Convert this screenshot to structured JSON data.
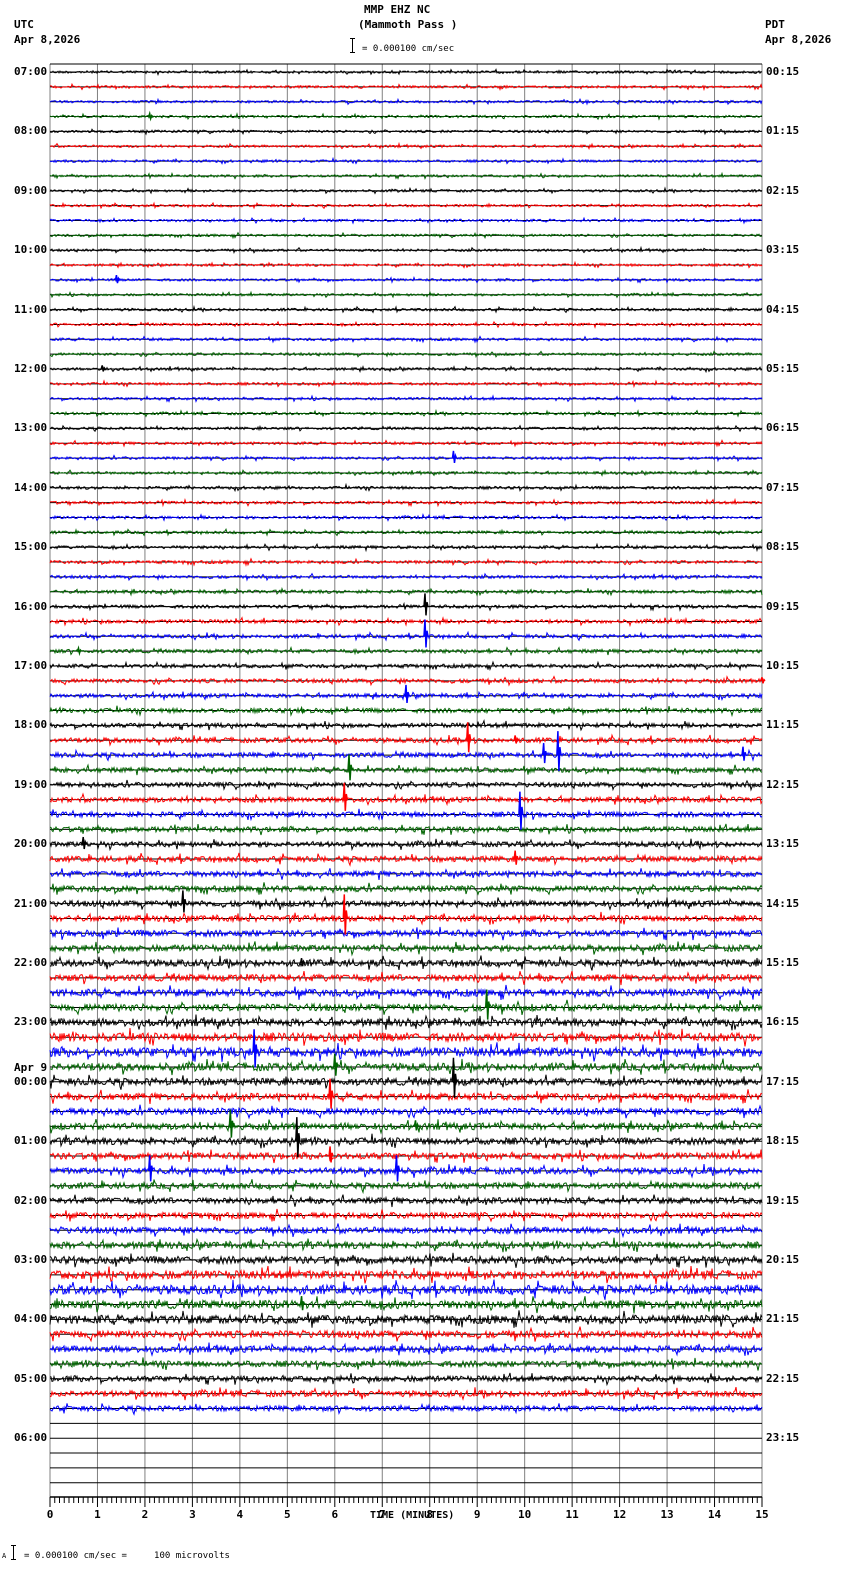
{
  "header": {
    "station": "MMP EHZ NC",
    "location": "(Mammoth Pass )",
    "left_tz": "UTC",
    "left_date": "Apr 8,2026",
    "right_tz": "PDT",
    "right_date": "Apr 8,2026",
    "scale_text": "= 0.000100 cm/sec"
  },
  "footer": {
    "scale_prefix": "A",
    "scale_text": "= 0.000100 cm/sec =     100 microvolts"
  },
  "colors": {
    "trace_cycle": [
      "#000000",
      "#ff0000",
      "#0000ff",
      "#006400"
    ],
    "grid": "#808080",
    "axis": "#000000"
  },
  "chart_data": {
    "type": "line",
    "title": "MMP EHZ NC (Mammoth Pass )",
    "subtitle": "= 0.000100 cm/sec",
    "xlabel": "TIME (MINUTES)",
    "ylabel": "",
    "x_ticks": [
      "0",
      "1",
      "2",
      "3",
      "4",
      "5",
      "6",
      "7",
      "8",
      "9",
      "10",
      "11",
      "12",
      "13",
      "14",
      "15"
    ],
    "xlim": [
      0,
      15
    ],
    "grid": true,
    "traces_per_hour": 4,
    "trace_minutes": 15,
    "left_axis_labels": [
      {
        "row": 0,
        "text": "07:00"
      },
      {
        "row": 4,
        "text": "08:00"
      },
      {
        "row": 8,
        "text": "09:00"
      },
      {
        "row": 12,
        "text": "10:00"
      },
      {
        "row": 16,
        "text": "11:00"
      },
      {
        "row": 20,
        "text": "12:00"
      },
      {
        "row": 24,
        "text": "13:00"
      },
      {
        "row": 28,
        "text": "14:00"
      },
      {
        "row": 32,
        "text": "15:00"
      },
      {
        "row": 36,
        "text": "16:00"
      },
      {
        "row": 40,
        "text": "17:00"
      },
      {
        "row": 44,
        "text": "18:00"
      },
      {
        "row": 48,
        "text": "19:00"
      },
      {
        "row": 52,
        "text": "20:00"
      },
      {
        "row": 56,
        "text": "21:00"
      },
      {
        "row": 60,
        "text": "22:00"
      },
      {
        "row": 64,
        "text": "23:00"
      },
      {
        "row": 68,
        "text": "00:00",
        "date": "Apr 9"
      },
      {
        "row": 72,
        "text": "01:00"
      },
      {
        "row": 76,
        "text": "02:00"
      },
      {
        "row": 80,
        "text": "03:00"
      },
      {
        "row": 84,
        "text": "04:00"
      },
      {
        "row": 88,
        "text": "05:00"
      },
      {
        "row": 92,
        "text": "06:00"
      }
    ],
    "right_axis_labels": [
      {
        "row": 0,
        "text": "00:15"
      },
      {
        "row": 4,
        "text": "01:15"
      },
      {
        "row": 8,
        "text": "02:15"
      },
      {
        "row": 12,
        "text": "03:15"
      },
      {
        "row": 16,
        "text": "04:15"
      },
      {
        "row": 20,
        "text": "05:15"
      },
      {
        "row": 24,
        "text": "06:15"
      },
      {
        "row": 28,
        "text": "07:15"
      },
      {
        "row": 32,
        "text": "08:15"
      },
      {
        "row": 36,
        "text": "09:15"
      },
      {
        "row": 40,
        "text": "10:15"
      },
      {
        "row": 44,
        "text": "11:15"
      },
      {
        "row": 48,
        "text": "12:15"
      },
      {
        "row": 52,
        "text": "13:15"
      },
      {
        "row": 56,
        "text": "14:15"
      },
      {
        "row": 60,
        "text": "15:15"
      },
      {
        "row": 64,
        "text": "16:15"
      },
      {
        "row": 68,
        "text": "17:15"
      },
      {
        "row": 72,
        "text": "18:15"
      },
      {
        "row": 76,
        "text": "19:15"
      },
      {
        "row": 80,
        "text": "20:15"
      },
      {
        "row": 84,
        "text": "21:15"
      },
      {
        "row": 88,
        "text": "22:15"
      },
      {
        "row": 92,
        "text": "23:15"
      }
    ],
    "total_rows": 96,
    "rows_with_data": 91,
    "noise_amplitude_by_row": [
      1.2,
      1.2,
      1.2,
      1.2,
      1.2,
      1.2,
      1.2,
      1.2,
      1.2,
      1.2,
      1.2,
      1.2,
      1.2,
      1.2,
      1.2,
      1.2,
      1.3,
      1.3,
      1.3,
      1.3,
      1.3,
      1.3,
      1.3,
      1.3,
      1.3,
      1.3,
      1.3,
      1.3,
      1.4,
      1.4,
      1.4,
      1.4,
      1.5,
      1.5,
      1.5,
      1.6,
      1.6,
      1.8,
      1.8,
      1.8,
      1.8,
      2.0,
      2.0,
      2.2,
      2.2,
      2.4,
      2.4,
      2.4,
      2.4,
      2.6,
      2.6,
      2.6,
      2.6,
      2.8,
      2.8,
      3.0,
      3.0,
      3.0,
      3.2,
      3.2,
      3.4,
      3.4,
      3.6,
      3.6,
      3.8,
      4.2,
      4.6,
      3.8,
      3.6,
      3.4,
      3.4,
      3.4,
      3.4,
      3.2,
      3.2,
      3.0,
      3.0,
      3.0,
      3.2,
      3.4,
      3.6,
      4.2,
      4.6,
      4.2,
      4.2,
      3.6,
      3.2,
      3.0,
      2.8,
      3.0,
      2.6
    ],
    "events": [
      {
        "row": 3,
        "minute": 2.1,
        "amp": 5
      },
      {
        "row": 14,
        "minute": 1.4,
        "amp": 8
      },
      {
        "row": 20,
        "minute": 1.1,
        "amp": 6
      },
      {
        "row": 26,
        "minute": 8.5,
        "amp": 12
      },
      {
        "row": 36,
        "minute": 7.9,
        "amp": 22
      },
      {
        "row": 38,
        "minute": 7.9,
        "amp": 28
      },
      {
        "row": 39,
        "minute": 0.6,
        "amp": 5
      },
      {
        "row": 41,
        "minute": 15.0,
        "amp": 6
      },
      {
        "row": 42,
        "minute": 7.5,
        "amp": 18
      },
      {
        "row": 43,
        "minute": 5.3,
        "amp": 4
      },
      {
        "row": 45,
        "minute": 8.8,
        "amp": 30
      },
      {
        "row": 45,
        "minute": 9.8,
        "amp": 8
      },
      {
        "row": 46,
        "minute": 10.4,
        "amp": 20
      },
      {
        "row": 46,
        "minute": 10.7,
        "amp": 40
      },
      {
        "row": 46,
        "minute": 14.6,
        "amp": 14
      },
      {
        "row": 47,
        "minute": 6.3,
        "amp": 26
      },
      {
        "row": 49,
        "minute": 6.2,
        "amp": 28
      },
      {
        "row": 50,
        "minute": 9.9,
        "amp": 38
      },
      {
        "row": 52,
        "minute": 0.7,
        "amp": 12
      },
      {
        "row": 53,
        "minute": 9.8,
        "amp": 14
      },
      {
        "row": 56,
        "minute": 2.8,
        "amp": 22
      },
      {
        "row": 57,
        "minute": 6.2,
        "amp": 40
      },
      {
        "row": 60,
        "minute": 5.3,
        "amp": 8
      },
      {
        "row": 63,
        "minute": 9.2,
        "amp": 30
      },
      {
        "row": 66,
        "minute": 4.3,
        "amp": 38
      },
      {
        "row": 67,
        "minute": 6.0,
        "amp": 22
      },
      {
        "row": 68,
        "minute": 8.5,
        "amp": 40
      },
      {
        "row": 69,
        "minute": 5.9,
        "amp": 30
      },
      {
        "row": 71,
        "minute": 3.8,
        "amp": 28
      },
      {
        "row": 71,
        "minute": 7.7,
        "amp": 10
      },
      {
        "row": 72,
        "minute": 5.2,
        "amp": 40
      },
      {
        "row": 73,
        "minute": 5.9,
        "amp": 16
      },
      {
        "row": 74,
        "minute": 2.1,
        "amp": 26
      },
      {
        "row": 74,
        "minute": 7.3,
        "amp": 26
      },
      {
        "row": 83,
        "minute": 5.3,
        "amp": 14
      }
    ]
  },
  "axis": {
    "xlabel": "TIME (MINUTES)",
    "ticks": [
      "0",
      "1",
      "2",
      "3",
      "4",
      "5",
      "6",
      "7",
      "8",
      "9",
      "10",
      "11",
      "12",
      "13",
      "14",
      "15"
    ]
  }
}
